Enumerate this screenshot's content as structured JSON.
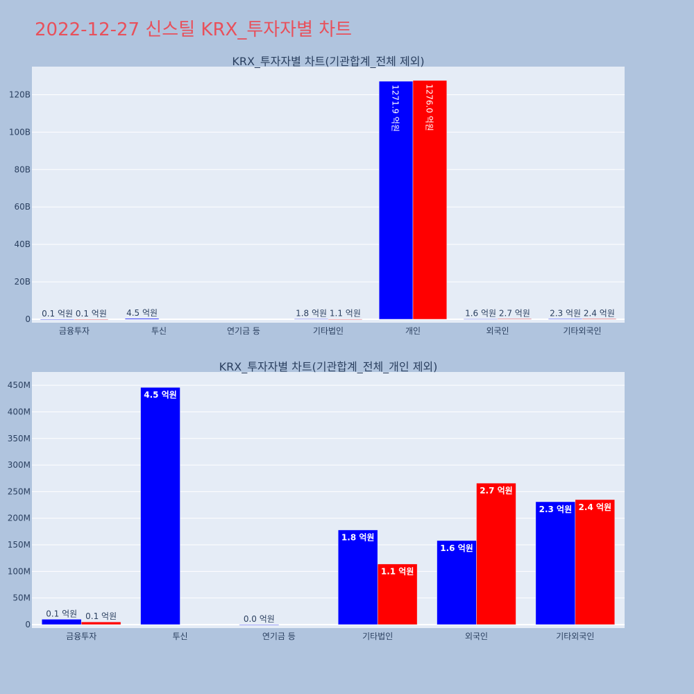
{
  "page_title": "2022-12-27 신스틸 KRX_투자자별 차트",
  "colors": {
    "buy": "#0000ff",
    "sell": "#ff0000",
    "plot_bg": "#e5ecf6",
    "page_bg": "#b0c4de",
    "title": "#e8505b"
  },
  "chart_data": [
    {
      "type": "bar",
      "title": "KRX_투자자별 차트(기관합계_전체 제외)",
      "categories": [
        "금융투자",
        "투신",
        "연기금 등",
        "기타법인",
        "개인",
        "외국인",
        "기타외국인"
      ],
      "y_tick_labels": [
        "0",
        "20B",
        "40B",
        "60B",
        "80B",
        "100B",
        "120B"
      ],
      "ylim": [
        0,
        135000000000
      ],
      "y_tick_step": 20000000000,
      "series": [
        {
          "color": "#0000ff",
          "values": [
            10000000,
            450000000,
            0,
            180000000,
            127190000000,
            160000000,
            230000000
          ],
          "labels": [
            "0.1 억원",
            "4.5 억원",
            "",
            "1.8 억원",
            "1271.9 억원",
            "1.6 억원",
            "2.3 억원"
          ]
        },
        {
          "color": "#ff0000",
          "values": [
            6000000,
            0,
            0,
            110000000,
            127600000000,
            270000000,
            240000000
          ],
          "labels": [
            "0.1 억원",
            "",
            "",
            "1.1 억원",
            "1276.0 억원",
            "2.7 억원",
            "2.4 억원"
          ]
        }
      ]
    },
    {
      "type": "bar",
      "title": "KRX_투자자별 차트(기관합계_전체_개인 제외)",
      "categories": [
        "금융투자",
        "투신",
        "연기금 등",
        "기타법인",
        "외국인",
        "기타외국인"
      ],
      "y_tick_labels": [
        "0",
        "50M",
        "100M",
        "150M",
        "200M",
        "250M",
        "300M",
        "350M",
        "400M",
        "450M"
      ],
      "ylim": [
        0,
        475000000
      ],
      "y_tick_step": 50000000,
      "series": [
        {
          "color": "#0000ff",
          "values": [
            10000000,
            446000000,
            300000,
            178000000,
            158000000,
            231000000
          ],
          "labels": [
            "0.1 억원",
            "4.5 억원",
            "0.0 억원",
            "1.8 억원",
            "1.6 억원",
            "2.3 억원"
          ]
        },
        {
          "color": "#ff0000",
          "values": [
            5000000,
            0,
            0,
            114000000,
            266000000,
            235000000
          ],
          "labels": [
            "0.1 억원",
            "",
            "",
            "1.1 억원",
            "2.7 억원",
            "2.4 억원"
          ]
        }
      ]
    }
  ]
}
